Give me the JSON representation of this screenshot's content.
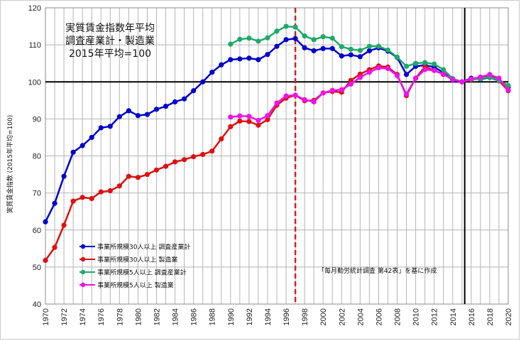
{
  "chart_data": {
    "type": "line",
    "title": [
      "実質賃金指数年平均",
      "調査産業計・製造業",
      "2015年平均=100"
    ],
    "ylabel": "実質賃金指数 (2015年平均=100)",
    "xlabel": "",
    "ylim": [
      40,
      120
    ],
    "xlim": [
      1970,
      2020
    ],
    "yticks": [
      40,
      50,
      60,
      70,
      80,
      90,
      100,
      110,
      120
    ],
    "xticks": [
      1970,
      1972,
      1974,
      1976,
      1978,
      1980,
      1982,
      1984,
      1986,
      1988,
      1990,
      1992,
      1994,
      1996,
      1998,
      2000,
      2002,
      2004,
      2006,
      2008,
      2010,
      2012,
      2014,
      2016,
      2018,
      2020
    ],
    "grid": true,
    "reference_line_y": 100,
    "reference_line_x": 2015.3,
    "dashed_line_x": 1997,
    "legend_position": "bottom-left",
    "annotation": "「毎月勤労統計調査 第42表」を基に作成",
    "series": [
      {
        "name": "事業所規模30人以上 調査産業計",
        "color": "#0000cc",
        "x": [
          1970,
          1971,
          1972,
          1973,
          1974,
          1975,
          1976,
          1977,
          1978,
          1979,
          1980,
          1981,
          1982,
          1983,
          1984,
          1985,
          1986,
          1987,
          1988,
          1989,
          1990,
          1991,
          1992,
          1993,
          1994,
          1995,
          1996,
          1997,
          1998,
          1999,
          2000,
          2001,
          2002,
          2003,
          2004,
          2005,
          2006,
          2007,
          2008,
          2009,
          2010,
          2011,
          2012,
          2013,
          2014,
          2015,
          2016,
          2017,
          2018,
          2019,
          2020
        ],
        "values": [
          62.2,
          67.2,
          74.5,
          81.0,
          82.8,
          85.0,
          87.6,
          88.0,
          90.6,
          92.2,
          90.9,
          91.2,
          92.6,
          93.4,
          94.6,
          95.4,
          97.6,
          100.0,
          102.6,
          104.6,
          106.0,
          106.2,
          106.4,
          106.0,
          107.4,
          109.6,
          111.4,
          111.7,
          109.2,
          108.4,
          109.0,
          109.0,
          107.0,
          107.3,
          106.8,
          108.4,
          109.2,
          108.3,
          106.6,
          102.0,
          104.2,
          104.5,
          104.0,
          102.5,
          100.5,
          100.0,
          101.0,
          100.7,
          101.2,
          100.3,
          98.6
        ]
      },
      {
        "name": "事業所規模30人以上 製造業",
        "color": "#dd1111",
        "x": [
          1970,
          1971,
          1972,
          1973,
          1974,
          1975,
          1976,
          1977,
          1978,
          1979,
          1980,
          1981,
          1982,
          1983,
          1984,
          1985,
          1986,
          1987,
          1988,
          1989,
          1990,
          1991,
          1992,
          1993,
          1994,
          1995,
          1996,
          1997,
          1998,
          1999,
          2000,
          2001,
          2002,
          2003,
          2004,
          2005,
          2006,
          2007,
          2008,
          2009,
          2010,
          2011,
          2012,
          2013,
          2014,
          2015,
          2016,
          2017,
          2018,
          2019,
          2020
        ],
        "values": [
          51.8,
          55.3,
          61.3,
          67.8,
          68.8,
          68.5,
          70.3,
          70.6,
          71.9,
          74.5,
          74.2,
          75.0,
          76.2,
          77.2,
          78.4,
          79.0,
          79.8,
          80.4,
          81.3,
          84.6,
          87.9,
          89.4,
          89.3,
          88.3,
          89.8,
          93.7,
          95.6,
          96.4,
          94.9,
          95.0,
          97.0,
          97.4,
          97.2,
          100.4,
          102.1,
          103.3,
          104.3,
          104.0,
          102.0,
          96.3,
          101.0,
          104.1,
          103.1,
          102.0,
          100.8,
          100.0,
          100.6,
          100.9,
          101.8,
          100.3,
          97.6
        ]
      },
      {
        "name": "事業所規模5人以上 調査産業計",
        "color": "#1fa86a",
        "x": [
          1990,
          1991,
          1992,
          1993,
          1994,
          1995,
          1996,
          1997,
          1998,
          1999,
          2000,
          2001,
          2002,
          2003,
          2004,
          2005,
          2006,
          2007,
          2008,
          2009,
          2010,
          2011,
          2012,
          2013,
          2014,
          2015,
          2016,
          2017,
          2018,
          2019,
          2020
        ],
        "values": [
          110.2,
          111.5,
          111.8,
          111.0,
          111.9,
          113.7,
          115.0,
          114.8,
          112.4,
          111.4,
          112.2,
          111.8,
          109.5,
          108.8,
          108.5,
          109.6,
          109.6,
          108.6,
          106.7,
          104.2,
          105.0,
          105.2,
          104.8,
          103.3,
          100.9,
          100.0,
          100.7,
          100.8,
          101.3,
          100.4,
          99.0
        ]
      },
      {
        "name": "事業所規模5人以上 製造業",
        "color": "#ee11ee",
        "x": [
          1990,
          1991,
          1992,
          1993,
          1994,
          1995,
          1996,
          1997,
          1998,
          1999,
          2000,
          2001,
          2002,
          2003,
          2004,
          2005,
          2006,
          2007,
          2008,
          2009,
          2010,
          2011,
          2012,
          2013,
          2014,
          2015,
          2016,
          2017,
          2018,
          2019,
          2020
        ],
        "values": [
          90.5,
          90.8,
          90.7,
          89.6,
          90.9,
          94.3,
          96.2,
          96.4,
          95.2,
          94.6,
          97.0,
          97.7,
          97.9,
          99.4,
          101.2,
          102.6,
          103.8,
          103.6,
          101.7,
          96.7,
          101.0,
          103.3,
          103.1,
          102.1,
          100.6,
          100.0,
          100.8,
          101.3,
          102.0,
          101.0,
          97.8
        ]
      }
    ]
  }
}
